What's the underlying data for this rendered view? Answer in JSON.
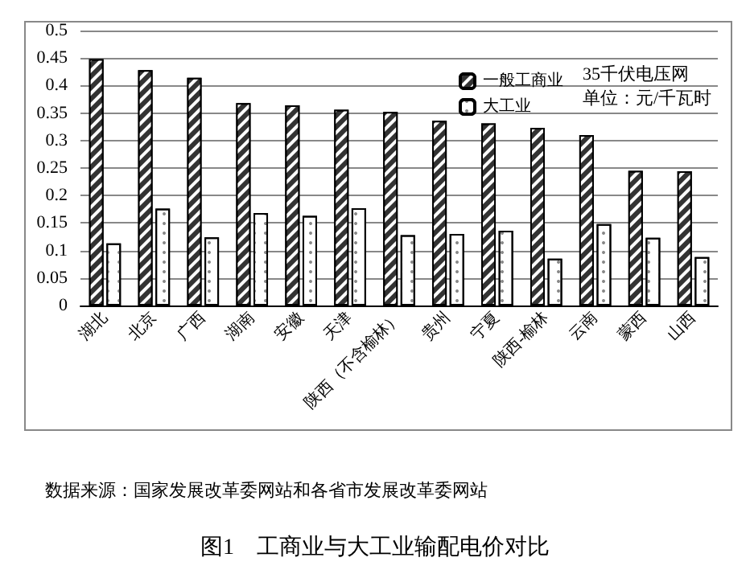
{
  "chart_data": {
    "type": "bar",
    "title": "图1　工商业与大工业输配电价对比",
    "categories": [
      "湖北",
      "北京",
      "广西",
      "湖南",
      "安徽",
      "天津",
      "陕西（不含榆林）",
      "贵州",
      "宁夏",
      "陕西-榆林",
      "云南",
      "蒙西",
      "山西"
    ],
    "series": [
      {
        "name": "一般工商业",
        "color": "#333333",
        "values": [
          0.448,
          0.428,
          0.414,
          0.368,
          0.364,
          0.356,
          0.352,
          0.336,
          0.331,
          0.323,
          0.31,
          0.245,
          0.244
        ]
      },
      {
        "name": "大工业",
        "color": "#ffffff",
        "values": [
          0.113,
          0.176,
          0.124,
          0.168,
          0.163,
          0.177,
          0.128,
          0.13,
          0.136,
          0.085,
          0.148,
          0.123,
          0.088
        ]
      }
    ],
    "ylim": [
      0,
      0.5
    ],
    "yticks": [
      0,
      0.05,
      0.1,
      0.15,
      0.2,
      0.25,
      0.3,
      0.35,
      0.4,
      0.45,
      0.5
    ],
    "grid": "y",
    "legend": "top right",
    "annotations": [
      "35千伏电压网",
      "单位：元/千瓦时",
      "数据来源：国家发展改革委网站和各省市发展改革委网站"
    ]
  }
}
